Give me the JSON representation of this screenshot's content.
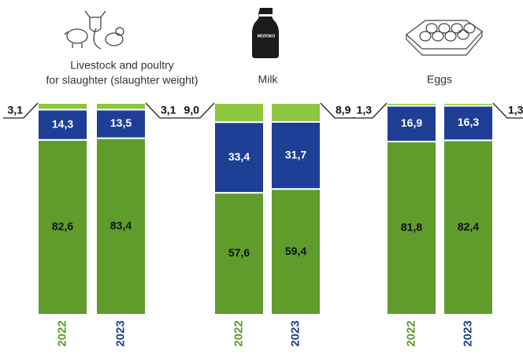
{
  "chart_data": [
    {
      "type": "bar",
      "stacked": true,
      "title": [
        "Livestock and poultry",
        "for slaughter (slaughter weight)"
      ],
      "categories": [
        "2022",
        "2023"
      ],
      "category_colors": [
        "#5a9a2a",
        "#1f3e96"
      ],
      "series": [
        {
          "color": "#5f9c2c",
          "values": [
            82.6,
            83.4
          ],
          "value_labels": [
            "82,6",
            "83,4"
          ]
        },
        {
          "color": "#1f3e96",
          "values": [
            14.3,
            13.5
          ],
          "value_labels": [
            "14,3",
            "13,5"
          ]
        },
        {
          "color": "#8dc63f",
          "values": [
            3.1,
            3.1
          ],
          "value_labels": [
            "3,1",
            "3,1"
          ]
        }
      ]
    },
    {
      "type": "bar",
      "stacked": true,
      "title": [
        "Milk"
      ],
      "icon_text": "МОЛОКО",
      "categories": [
        "2022",
        "2023"
      ],
      "category_colors": [
        "#5a9a2a",
        "#1f3e96"
      ],
      "series": [
        {
          "color": "#5f9c2c",
          "values": [
            57.6,
            59.4
          ],
          "value_labels": [
            "57,6",
            "59,4"
          ]
        },
        {
          "color": "#1f3e96",
          "values": [
            33.4,
            31.7
          ],
          "value_labels": [
            "33,4",
            "31,7"
          ]
        },
        {
          "color": "#8dc63f",
          "values": [
            9.0,
            8.9
          ],
          "value_labels": [
            "9,0",
            "8,9"
          ]
        }
      ]
    },
    {
      "type": "bar",
      "stacked": true,
      "title": [
        "Eggs"
      ],
      "categories": [
        "2022",
        "2023"
      ],
      "category_colors": [
        "#5a9a2a",
        "#1f3e96"
      ],
      "series": [
        {
          "color": "#5f9c2c",
          "values": [
            81.8,
            82.4
          ],
          "value_labels": [
            "81,8",
            "82,4"
          ]
        },
        {
          "color": "#1f3e96",
          "values": [
            16.9,
            16.3
          ],
          "value_labels": [
            "16,9",
            "16,3"
          ]
        },
        {
          "color": "#8dc63f",
          "values": [
            1.3,
            1.3
          ],
          "value_labels": [
            "1,3",
            "1,3"
          ]
        }
      ]
    }
  ]
}
